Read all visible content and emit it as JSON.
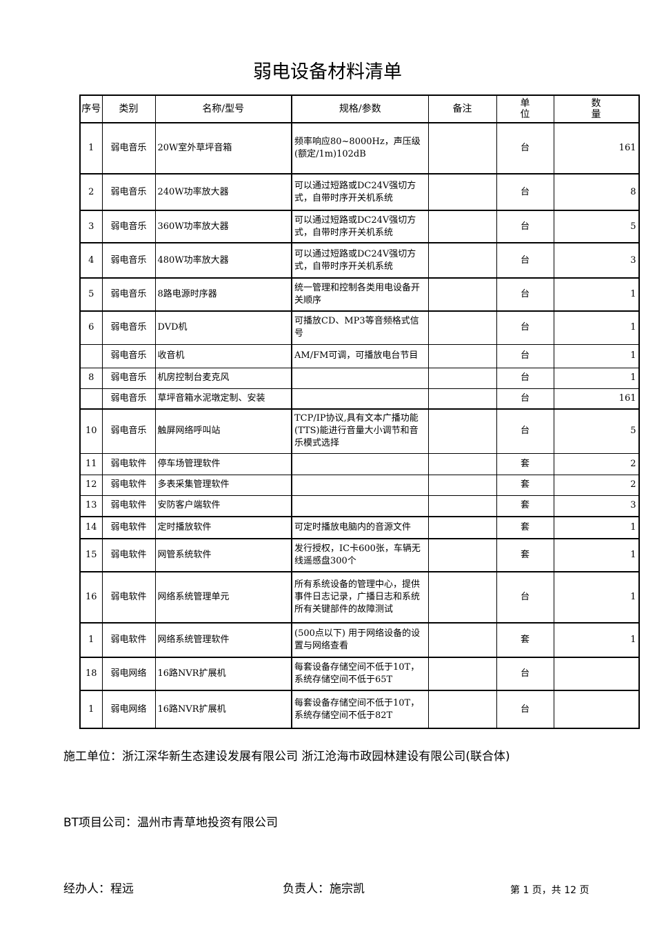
{
  "title": "弱电设备材料清单",
  "headers": {
    "no": "序号",
    "category": "类别",
    "name": "名称/型号",
    "spec": "规格/参数",
    "remark": "备注",
    "unit": "单位",
    "qty": "数量"
  },
  "rows": [
    {
      "no": "1",
      "category": "弱电音乐",
      "name": "20W室外草坪音箱",
      "spec": "频率响应80~8000Hz，声压级(额定/1m)102dB",
      "remark": "",
      "unit": "台",
      "qty": "161"
    },
    {
      "no": "2",
      "category": "弱电音乐",
      "name": "240W功率放大器",
      "spec": "可以通过短路或DC24V强切方式，自带时序开关机系统",
      "remark": "",
      "unit": "台",
      "qty": "8"
    },
    {
      "no": "3",
      "category": "弱电音乐",
      "name": "360W功率放大器",
      "spec": "可以通过短路或DC24V强切方式，自带时序开关机系统",
      "remark": "",
      "unit": "台",
      "qty": "5"
    },
    {
      "no": "4",
      "category": "弱电音乐",
      "name": "480W功率放大器",
      "spec": "可以通过短路或DC24V强切方式，自带时序开关机系统",
      "remark": "",
      "unit": "台",
      "qty": "3"
    },
    {
      "no": "5",
      "category": "弱电音乐",
      "name": "8路电源时序器",
      "spec": "统一管理和控制各类用电设备开关顺序",
      "remark": "",
      "unit": "台",
      "qty": "1"
    },
    {
      "no": "6",
      "category": "弱电音乐",
      "name": "DVD机",
      "spec": "可播放CD、MP3等音频格式信号",
      "remark": "",
      "unit": "台",
      "qty": "1"
    },
    {
      "no": "",
      "category": "弱电音乐",
      "name": "收音机",
      "spec": "AM/FM可调，可播放电台节目",
      "remark": "",
      "unit": "台",
      "qty": "1"
    },
    {
      "no": "8",
      "category": "弱电音乐",
      "name": "机房控制台麦克风",
      "spec": "",
      "remark": "",
      "unit": "台",
      "qty": "1"
    },
    {
      "no": "",
      "category": "弱电音乐",
      "name": "草坪音箱水泥墩定制、安装",
      "spec": "",
      "remark": "",
      "unit": "台",
      "qty": "161"
    },
    {
      "no": "10",
      "category": "弱电音乐",
      "name": "触屏网络呼叫站",
      "spec": "TCP/IP协议,具有文本广播功能(TTS)能进行音量大小调节和音乐模式选择",
      "remark": "",
      "unit": "台",
      "qty": "5"
    },
    {
      "no": "11",
      "category": "弱电软件",
      "name": "停车场管理软件",
      "spec": "",
      "remark": "",
      "unit": "套",
      "qty": "2"
    },
    {
      "no": "12",
      "category": "弱电软件",
      "name": "多表采集管理软件",
      "spec": "",
      "remark": "",
      "unit": "套",
      "qty": "2"
    },
    {
      "no": "13",
      "category": "弱电软件",
      "name": "安防客户端软件",
      "spec": "",
      "remark": "",
      "unit": "套",
      "qty": "3"
    },
    {
      "no": "14",
      "category": "弱电软件",
      "name": "定时播放软件",
      "spec": "可定时播放电脑内的音源文件",
      "remark": "",
      "unit": "套",
      "qty": "1"
    },
    {
      "no": "15",
      "category": "弱电软件",
      "name": "网管系统软件",
      "spec": "发行授权，IC卡600张，车辆无线遥感盘300个",
      "remark": "",
      "unit": "套",
      "qty": "1"
    },
    {
      "no": "16",
      "category": "弱电软件",
      "name": "网络系统管理单元",
      "spec": "所有系统设备的管理中心，提供事件日志记录，广播日志和系统所有关键部件的故障测试",
      "remark": "",
      "unit": "台",
      "qty": "1"
    },
    {
      "no": "1",
      "category": "弱电软件",
      "name": "网络系统管理软件",
      "spec": "(500点以下) 用于网络设备的设置与网络查看",
      "remark": "",
      "unit": "套",
      "qty": "1"
    },
    {
      "no": "18",
      "category": "弱电网络",
      "name": "16路NVR扩展机",
      "spec": "每套设备存储空间不低于10T，系统存储空间不低于65T",
      "remark": "",
      "unit": "台",
      "qty": ""
    },
    {
      "no": "1",
      "category": "弱电网络",
      "name": "16路NVR扩展机",
      "spec": "每套设备存储空间不低于10T，系统存储空间不低于82T",
      "remark": "",
      "unit": "台",
      "qty": ""
    }
  ],
  "footer": {
    "contractor": "施工单位：浙江深华新生态建设发展有限公司 浙江沧海市政园林建设有限公司(联合体)",
    "bt_company": "BT项目公司：温州市青草地投资有限公司",
    "handler": "经办人：程远",
    "responsible": "负责人：施宗凯",
    "page": "第 1 页，共 12 页"
  }
}
